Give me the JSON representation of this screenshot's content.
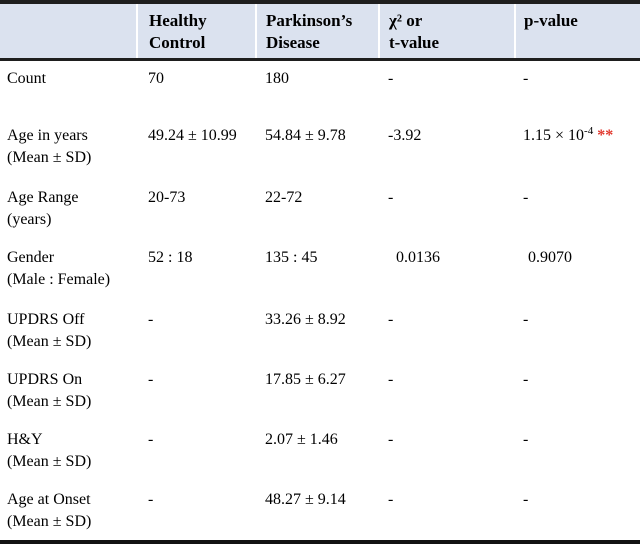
{
  "table": {
    "columns": [
      {
        "label": ""
      },
      {
        "label": "Healthy\nControl"
      },
      {
        "label": "Parkinson’s\nDisease"
      },
      {
        "label": "χ² or\nt-value"
      },
      {
        "label": "p-value"
      }
    ],
    "rows": [
      {
        "label": "Count",
        "cells": [
          "70",
          "180",
          "-",
          "-"
        ]
      },
      {
        "label": "Age in years\n(Mean ± SD)",
        "cells": [
          "49.24 ± 10.99",
          "54.84 ± 9.78",
          "-3.92",
          [
            {
              "t": "1.15 × 10"
            },
            {
              "t": "-4",
              "sup": true
            },
            {
              "t": " "
            },
            {
              "t": "**",
              "red": true
            }
          ]
        ]
      },
      {
        "label": "Age Range\n(years)",
        "cells": [
          "20-73",
          "22-72",
          "-",
          "-"
        ]
      },
      {
        "label": "Gender\n(Male : Female)",
        "cells": [
          "52 : 18",
          "135 : 45",
          "0.0136",
          "0.9070"
        ]
      },
      {
        "label": "UPDRS Off\n(Mean ± SD)",
        "cells": [
          "-",
          "33.26 ± 8.92",
          "-",
          "-"
        ]
      },
      {
        "label": "UPDRS On\n(Mean ± SD)",
        "cells": [
          "-",
          "17.85 ± 6.27",
          "-",
          "-"
        ]
      },
      {
        "label": "H&Y\n(Mean ± SD)",
        "cells": [
          "-",
          "2.07 ± 1.46",
          "-",
          "-"
        ]
      },
      {
        "label": "Age at Onset\n(Mean ± SD)",
        "cells": [
          "-",
          "48.27 ± 9.14",
          "-",
          "-"
        ]
      }
    ]
  },
  "colors": {
    "header_bg": "#dbe2ef",
    "rule_dark": "#1e1e1e",
    "significance_red": "#e1362c"
  }
}
